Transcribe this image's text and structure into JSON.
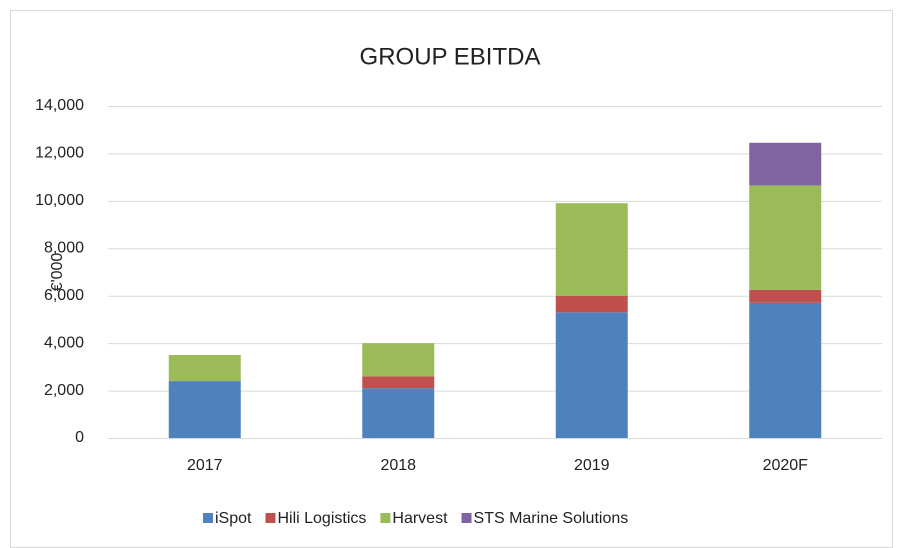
{
  "chart_data": {
    "type": "stacked_bar",
    "title": "GROUP EBITDA",
    "y_label": "€'000",
    "categories": [
      "2017",
      "2018",
      "2019",
      "2020F"
    ],
    "series": [
      {
        "name": "iSpot",
        "color": "#4f81bd",
        "values": [
          2400,
          2100,
          5300,
          5700
        ]
      },
      {
        "name": "Hili Logistics",
        "color": "#c0504d",
        "values": [
          0,
          500,
          700,
          550
        ]
      },
      {
        "name": "Harvest",
        "color": "#9bbb59",
        "values": [
          1100,
          1400,
          3900,
          4400
        ]
      },
      {
        "name": "STS Marine Solutions",
        "color": "#8064a2",
        "values": [
          0,
          0,
          0,
          1800
        ]
      }
    ],
    "ylim": [
      0,
      14000
    ],
    "yticks": [
      0,
      {
        "value": 2000,
        "label": "2,000"
      },
      {
        "value": 4000,
        "label": "4,000"
      },
      {
        "value": 6000,
        "label": "6,000"
      },
      {
        "value": 8000,
        "label": "8,000"
      },
      {
        "value": 10000,
        "label": "10,000"
      },
      {
        "value": 12000,
        "label": "12,000"
      },
      {
        "value": 14000,
        "label": "14,000"
      }
    ],
    "grid": true,
    "legend": "bottom"
  }
}
